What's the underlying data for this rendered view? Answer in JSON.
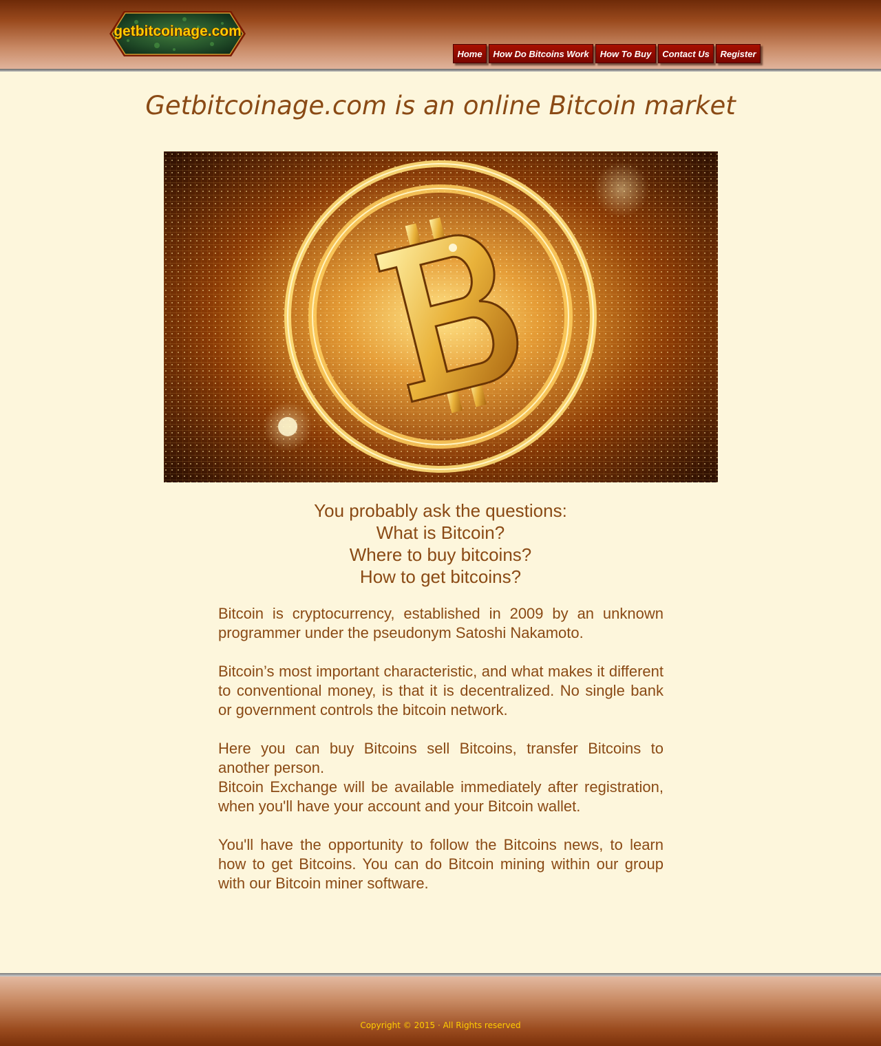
{
  "logo": {
    "text": "getbitcoinage.com"
  },
  "nav": {
    "items": [
      {
        "label": "Home"
      },
      {
        "label": "How Do Bitcoins Work"
      },
      {
        "label": "How To Buy"
      },
      {
        "label": "Contact Us"
      },
      {
        "label": "Register"
      }
    ]
  },
  "main": {
    "title": "Getbitcoinage.com is an online Bitcoin market",
    "hero_image": {
      "subject": "glowing golden bitcoin symbol in concentric rings over a digital matrix background",
      "icon": "bitcoin-icon"
    },
    "questions": [
      "You probably ask the questions:",
      "What is Bitcoin?",
      "Where to buy bitcoins?",
      "How to get bitcoins?"
    ],
    "paragraphs": [
      "Bitcoin is cryptocurrency, established in 2009 by an unknown programmer under the pseudonym Satoshi Nakamoto.",
      "Bitcoin’s most important characteristic, and what makes it different to conventional money, is that it is decentralized. No single bank or government controls the bitcoin network.",
      "Here you can buy Bitcoins sell Bitcoins, transfer Bitcoins to another person.",
      "Bitcoin Exchange will be available immediately after registration, when you'll have your account and your Bitcoin wallet.",
      "You'll have the opportunity to follow the Bitcoins news, to learn how to get Bitcoins. You can do Bitcoin mining within our group with our Bitcoin miner software."
    ]
  },
  "footer": {
    "copyright": "Copyright © 2015 · All Rights reserved"
  },
  "colors": {
    "page_background": "#fdf6dc",
    "text_brown": "#8a4a15",
    "nav_red": "#a81000",
    "logo_gold": "#ffcc00",
    "header_brown": "#6e2a08"
  }
}
